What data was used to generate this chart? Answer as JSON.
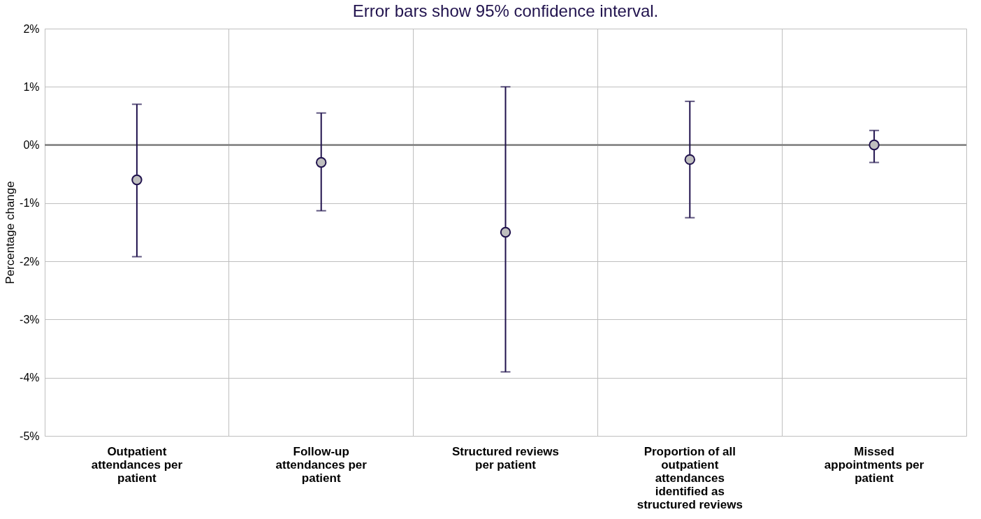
{
  "chart_data": {
    "type": "scatter",
    "title": "Error bars show 95% confidence interval.",
    "ylabel": "Percentage change",
    "categories": [
      "Outpatient attendances per patient",
      "Follow-up attendances per patient",
      "Structured reviews per patient",
      "Proportion of all outpatient attendances identified as structured reviews",
      "Missed appointments per patient"
    ],
    "series": [
      {
        "color": "#bfbfbf",
        "values": [
          -0.6,
          -0.3,
          -1.5,
          -0.25,
          0
        ],
        "errors": [
          [
            -1.92,
            0.7
          ],
          [
            -1.13,
            0.55
          ],
          [
            -3.9,
            1.0
          ],
          [
            -1.25,
            0.75
          ],
          [
            -0.3,
            0.25
          ]
        ]
      }
    ],
    "ylim": [
      -5,
      2
    ],
    "yticks": [
      {
        "value": -5,
        "label": "-5%"
      },
      {
        "value": -4,
        "label": "-4%"
      },
      {
        "value": -3,
        "label": "-3%"
      },
      {
        "value": -2,
        "label": "-2%"
      },
      {
        "value": -1,
        "label": "-1%"
      },
      {
        "value": 0,
        "label": "0%"
      },
      {
        "value": 1,
        "label": "1%"
      },
      {
        "value": 2,
        "label": "2%"
      }
    ],
    "ref_lines": [
      {
        "axis": "y",
        "value": 0,
        "color": "#808080"
      }
    ],
    "grid": true,
    "marker": "circle"
  }
}
